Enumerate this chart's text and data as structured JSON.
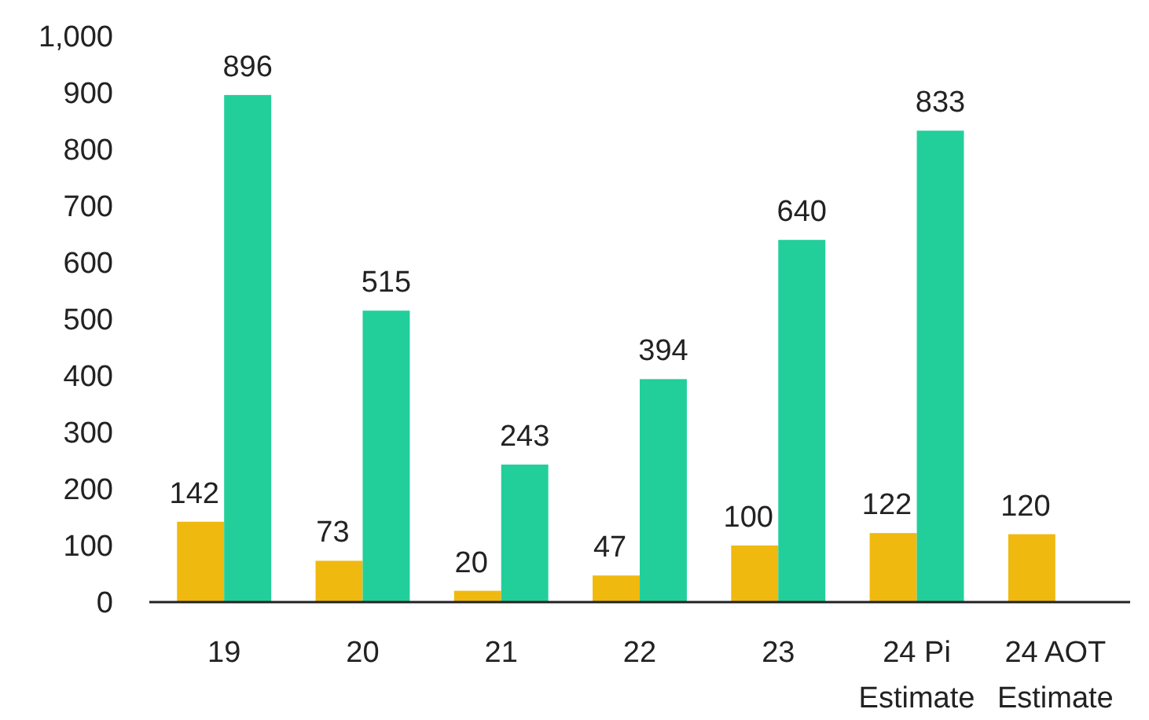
{
  "chart_data": {
    "type": "bar",
    "categories": [
      "19",
      "20",
      "21",
      "22",
      "23",
      "24 Pi Estimate",
      "24 AOT Estimate"
    ],
    "series": [
      {
        "color": "#f0b90f",
        "values": [
          142,
          73,
          20,
          47,
          100,
          122,
          120
        ]
      },
      {
        "color": "#22cf9a",
        "values": [
          896,
          515,
          243,
          394,
          640,
          833,
          null
        ]
      }
    ],
    "ylim": [
      0,
      1000
    ],
    "yticks": [
      0,
      100,
      200,
      300,
      400,
      500,
      600,
      700,
      800,
      900,
      {
        "value": 1000,
        "label": "1,000"
      }
    ],
    "data_labels": true
  }
}
